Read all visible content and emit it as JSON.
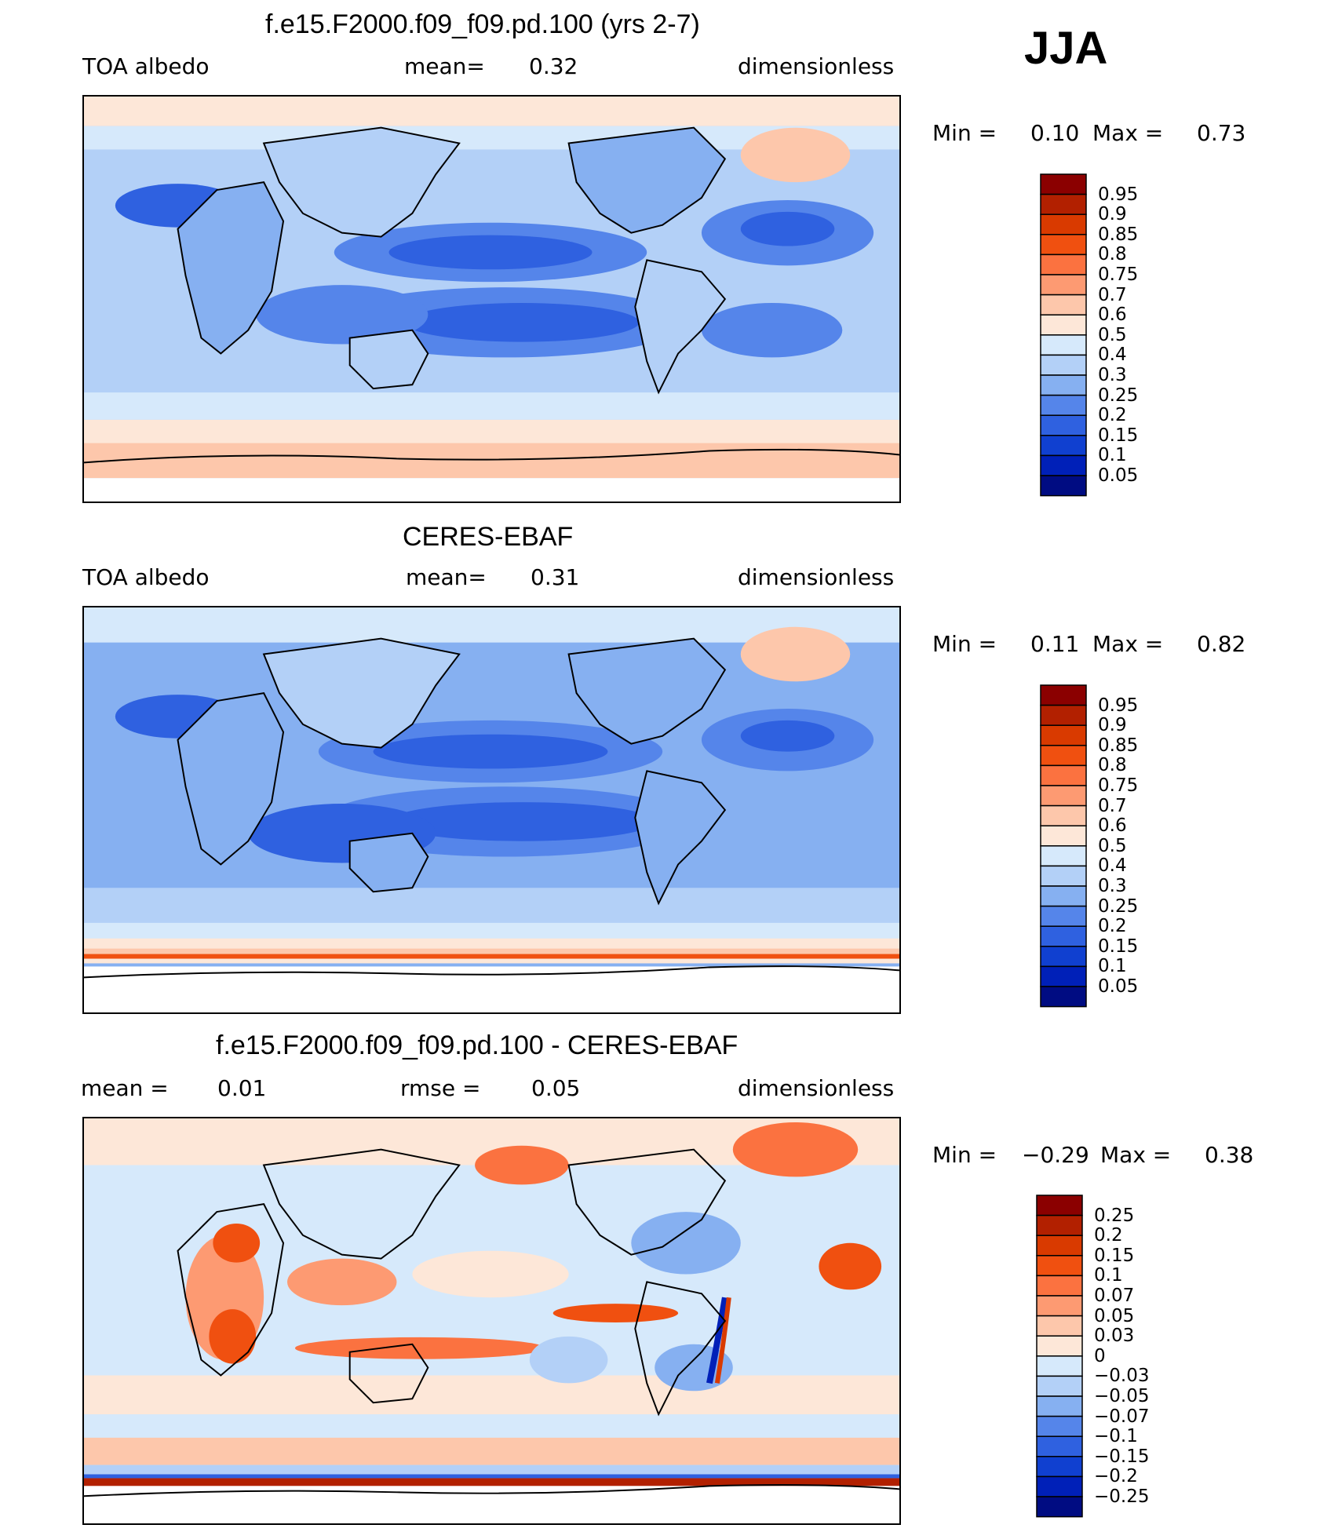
{
  "season": "JJA",
  "panels": [
    {
      "title": "f.e15.F2000.f09_f09.pd.100 (yrs 2-7)",
      "left_label": "TOA  albedo",
      "center_label": "mean=",
      "center_value": "0.32",
      "right_label": "dimensionless",
      "min_label": "Min  =",
      "min_value": "0.10",
      "max_label": "Max  =",
      "max_value": "0.73"
    },
    {
      "title": "CERES-EBAF",
      "left_label": "TOA  albedo",
      "center_label": "mean=",
      "center_value": "0.31",
      "right_label": "dimensionless",
      "min_label": "Min  =",
      "min_value": "0.11",
      "max_label": "Max  =",
      "max_value": "0.82"
    },
    {
      "title": "f.e15.F2000.f09_f09.pd.100 - CERES-EBAF",
      "left_label": "mean  =",
      "left_value": "0.01",
      "center_label": "rmse  =",
      "center_value": "0.05",
      "right_label": "dimensionless",
      "min_label": "Min  =",
      "min_value": "−0.29",
      "max_label": "Max  =",
      "max_value": "0.38"
    }
  ],
  "chart_data": [
    {
      "type": "heatmap",
      "title": "f.e15.F2000.f09_f09.pd.100 (yrs 2-7)",
      "variable": "TOA albedo",
      "units": "dimensionless",
      "season": "JJA",
      "mean": 0.32,
      "min": 0.1,
      "max": 0.73,
      "colorbar_levels": [
        "0.95",
        "0.9",
        "0.85",
        "0.8",
        "0.75",
        "0.7",
        "0.6",
        "0.5",
        "0.4",
        "0.3",
        "0.25",
        "0.2",
        "0.15",
        "0.1",
        "0.05"
      ],
      "colorbar_colors": [
        "#8b0000",
        "#b22000",
        "#d93a00",
        "#f05010",
        "#fb7240",
        "#fd9a72",
        "#fdc7ab",
        "#fde7d8",
        "#d6e9fb",
        "#b3d0f7",
        "#86b0f1",
        "#5585ea",
        "#2f61e0",
        "#1040d0",
        "#0020b8",
        "#000c82"
      ]
    },
    {
      "type": "heatmap",
      "title": "CERES-EBAF",
      "variable": "TOA albedo",
      "units": "dimensionless",
      "season": "JJA",
      "mean": 0.31,
      "min": 0.11,
      "max": 0.82,
      "colorbar_levels": [
        "0.95",
        "0.9",
        "0.85",
        "0.8",
        "0.75",
        "0.7",
        "0.6",
        "0.5",
        "0.4",
        "0.3",
        "0.25",
        "0.2",
        "0.15",
        "0.1",
        "0.05"
      ],
      "colorbar_colors": [
        "#8b0000",
        "#b22000",
        "#d93a00",
        "#f05010",
        "#fb7240",
        "#fd9a72",
        "#fdc7ab",
        "#fde7d8",
        "#d6e9fb",
        "#b3d0f7",
        "#86b0f1",
        "#5585ea",
        "#2f61e0",
        "#1040d0",
        "#0020b8",
        "#000c82"
      ]
    },
    {
      "type": "heatmap",
      "title": "f.e15.F2000.f09_f09.pd.100 - CERES-EBAF",
      "units": "dimensionless",
      "mean": 0.01,
      "rmse": 0.05,
      "min": -0.29,
      "max": 0.38,
      "colorbar_levels": [
        "0.25",
        "0.2",
        "0.15",
        "0.1",
        "0.07",
        "0.05",
        "0.03",
        "0",
        "−0.03",
        "−0.05",
        "−0.07",
        "−0.1",
        "−0.15",
        "−0.2",
        "−0.25"
      ],
      "colorbar_colors": [
        "#8b0000",
        "#b22000",
        "#d93a00",
        "#f05010",
        "#fb7240",
        "#fd9a72",
        "#fdc7ab",
        "#fde7d8",
        "#d6e9fb",
        "#b3d0f7",
        "#86b0f1",
        "#5585ea",
        "#2f61e0",
        "#1040d0",
        "#0020b8",
        "#000c82"
      ]
    }
  ]
}
